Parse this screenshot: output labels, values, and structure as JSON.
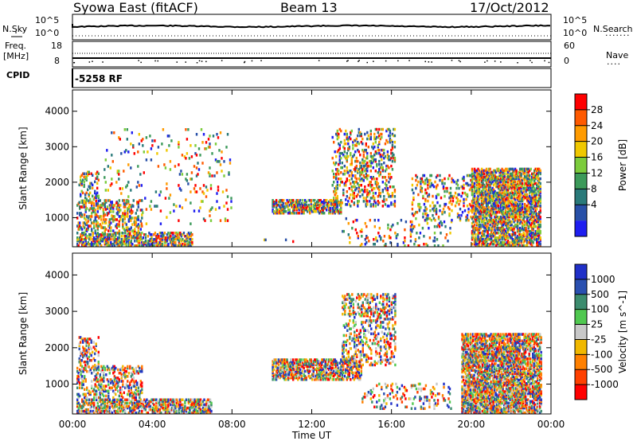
{
  "header": {
    "station": "Syowa East (fitACF)",
    "beam": "Beam 13",
    "date": "17/Oct/2012"
  },
  "top_panels": {
    "nsky_label": "N.Sky",
    "nsearch_label": "N.Search",
    "nsky_ticks": [
      "10^5",
      "10^0"
    ],
    "nsearch_ticks": [
      "10^5",
      "10^0"
    ],
    "freq_label": "Freq.",
    "freq_unit": "[MHz]",
    "freq_ticks": [
      "18",
      "8"
    ],
    "nave_label": "Nave",
    "nave_ticks": [
      "60",
      "0"
    ],
    "cpid_label": "CPID",
    "cpid_value": "-5258 RF"
  },
  "chart_data": [
    {
      "type": "heatmap",
      "panel": "power",
      "ylabel": "Slant Range [km]",
      "ylim": [
        180,
        4600
      ],
      "yticks": [
        1000,
        2000,
        3000,
        4000
      ],
      "xlabel": "Time UT",
      "xlim": [
        0,
        24
      ],
      "xticks": [
        "00:00",
        "04:00",
        "08:00",
        "12:00",
        "16:00",
        "20:00",
        "00:00"
      ],
      "colorbar": {
        "label": "Power [dB]",
        "ticks": [
          "28",
          "24",
          "20",
          "16",
          "12",
          "8",
          "4"
        ],
        "colors": [
          "#ff0000",
          "#ff5a00",
          "#ff9b00",
          "#f0c800",
          "#7ccc3c",
          "#3c9a5a",
          "#2a7a7a",
          "#2850a8",
          "#1e1ef0"
        ]
      },
      "regions": [
        {
          "t0": 0.2,
          "t1": 6.0,
          "r0": 180,
          "r1": 600,
          "density": 0.55
        },
        {
          "t0": 0.2,
          "t1": 3.5,
          "r0": 600,
          "r1": 1500,
          "density": 0.3
        },
        {
          "t0": 0.3,
          "t1": 1.3,
          "r0": 1400,
          "r1": 2300,
          "density": 0.25
        },
        {
          "t0": 1.5,
          "t1": 8.0,
          "r0": 800,
          "r1": 3500,
          "density": 0.04
        },
        {
          "t0": 10.0,
          "t1": 13.5,
          "r0": 1100,
          "r1": 1500,
          "density": 0.55
        },
        {
          "t0": 13.0,
          "t1": 16.2,
          "r0": 1300,
          "r1": 3500,
          "density": 0.2
        },
        {
          "t0": 13.5,
          "t1": 19.0,
          "r0": 180,
          "r1": 1000,
          "density": 0.08
        },
        {
          "t0": 17.0,
          "t1": 21.0,
          "r0": 900,
          "r1": 2200,
          "density": 0.15
        },
        {
          "t0": 20.0,
          "t1": 23.5,
          "r0": 180,
          "r1": 2400,
          "density": 0.55
        },
        {
          "t0": 8.5,
          "t1": 12.5,
          "r0": 300,
          "r1": 400,
          "density": 0.05
        }
      ]
    },
    {
      "type": "heatmap",
      "panel": "velocity",
      "ylabel": "Slant Range [km]",
      "ylim": [
        180,
        4600
      ],
      "yticks": [
        1000,
        2000,
        3000,
        4000
      ],
      "xlabel": "Time UT",
      "xlim": [
        0,
        24
      ],
      "xticks": [
        "00:00",
        "04:00",
        "08:00",
        "12:00",
        "16:00",
        "20:00",
        "00:00"
      ],
      "colorbar": {
        "label": "Velocity [m s^-1]",
        "ticks": [
          "1000",
          "500",
          "100",
          "25",
          "-25",
          "-100",
          "-500",
          "-1000"
        ],
        "colors": [
          "#2030c8",
          "#2a50b0",
          "#3c8c6e",
          "#50c850",
          "#c8c8c8",
          "#f0b800",
          "#ff8000",
          "#ff4000",
          "#ff0000"
        ]
      },
      "regions": [
        {
          "t0": 0.2,
          "t1": 7.0,
          "r0": 180,
          "r1": 600,
          "density": 0.5
        },
        {
          "t0": 0.2,
          "t1": 3.5,
          "r0": 600,
          "r1": 1500,
          "density": 0.3
        },
        {
          "t0": 0.3,
          "t1": 1.3,
          "r0": 1400,
          "r1": 2300,
          "density": 0.25
        },
        {
          "t0": 10.0,
          "t1": 14.5,
          "r0": 1100,
          "r1": 1700,
          "density": 0.55
        },
        {
          "t0": 13.5,
          "t1": 16.2,
          "r0": 1500,
          "r1": 3500,
          "density": 0.25
        },
        {
          "t0": 14.5,
          "t1": 19.0,
          "r0": 300,
          "r1": 1000,
          "density": 0.1
        },
        {
          "t0": 19.5,
          "t1": 23.5,
          "r0": 180,
          "r1": 2400,
          "density": 0.6
        }
      ]
    }
  ]
}
